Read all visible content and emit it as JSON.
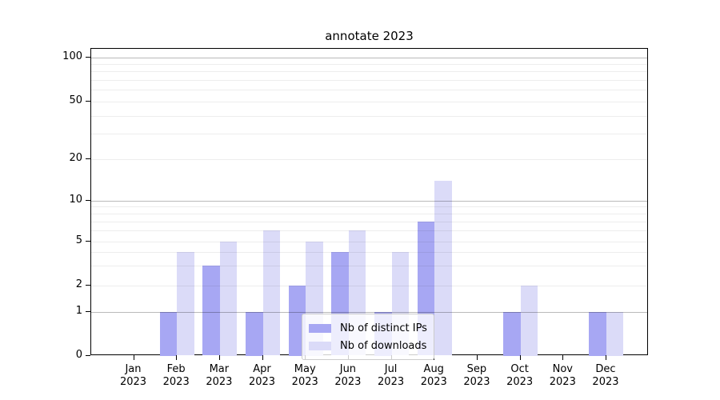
{
  "chart_data": {
    "type": "bar",
    "title": "annotate 2023",
    "categories": [
      "Jan 2023",
      "Feb 2023",
      "Mar 2023",
      "Apr 2023",
      "May 2023",
      "Jun 2023",
      "Jul 2023",
      "Aug 2023",
      "Sep 2023",
      "Oct 2023",
      "Nov 2023",
      "Dec 2023"
    ],
    "series": [
      {
        "name": "Nb of distinct IPs",
        "key": "distinct-ips",
        "color": "#a7a7f3",
        "values": [
          0,
          1,
          3,
          1,
          2,
          4,
          1,
          7,
          0,
          1,
          0,
          1
        ]
      },
      {
        "name": "Nb of downloads",
        "key": "downloads",
        "color": "#dbdbf8",
        "values": [
          0,
          4,
          5,
          6,
          5,
          6,
          4,
          14,
          0,
          2,
          0,
          1
        ]
      }
    ],
    "yscale": "symlog",
    "ylim": [
      0,
      115
    ],
    "ytick_values": [
      0,
      1,
      2,
      5,
      10,
      20,
      50,
      100
    ],
    "ytick_labels": [
      "0",
      "1",
      "2",
      "5",
      "10",
      "20",
      "50",
      "100"
    ],
    "major_grid_values": [
      1,
      10,
      100
    ],
    "minor_grid_values": [
      3,
      4,
      6,
      7,
      8,
      9,
      30,
      40,
      60,
      70,
      80,
      90
    ],
    "grid": true,
    "legend": {
      "position": "lower center",
      "entries": [
        "Nb of distinct IPs",
        "Nb of downloads"
      ]
    }
  },
  "style": {
    "background": "#ffffff",
    "axis_color": "#000000",
    "major_grid_color": "#bdbdbd",
    "minor_grid_color": "#ebebeb",
    "legend_border": "#cccccc",
    "bar_color_distinct_ips": "#a7a7f3",
    "bar_color_downloads": "#dbdbf8"
  }
}
